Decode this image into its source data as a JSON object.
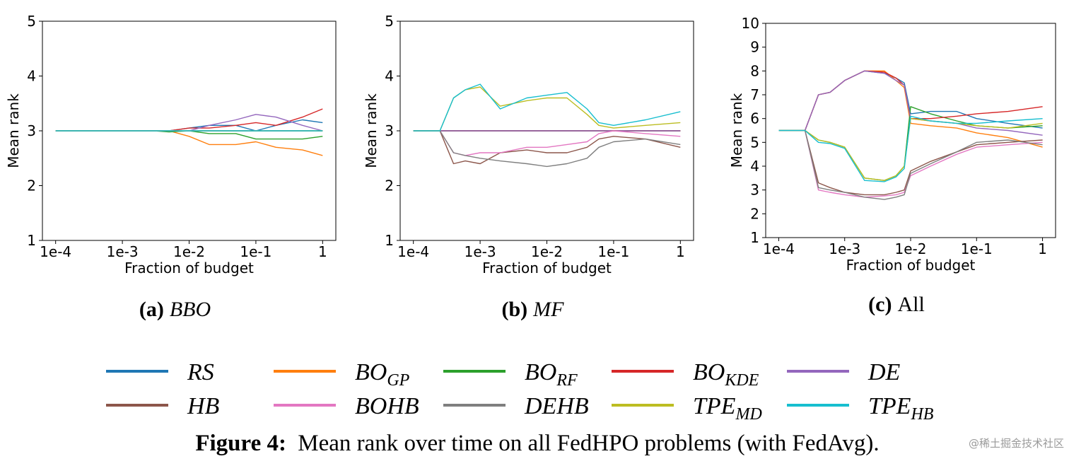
{
  "figure": {
    "caption_label": "Figure 4:",
    "caption_text": "Mean rank over time on all FedHPO problems (with FedAvg).",
    "watermark": "@稀土掘金技术社区"
  },
  "legend": [
    {
      "main": "RS",
      "sub": "",
      "color": "#1f77b4"
    },
    {
      "main": "BO",
      "sub": "GP",
      "color": "#ff7f0e"
    },
    {
      "main": "BO",
      "sub": "RF",
      "color": "#2ca02c"
    },
    {
      "main": "BO",
      "sub": "KDE",
      "color": "#d62728"
    },
    {
      "main": "DE",
      "sub": "",
      "color": "#9467bd"
    },
    {
      "main": "HB",
      "sub": "",
      "color": "#8c564b"
    },
    {
      "main": "BOHB",
      "sub": "",
      "color": "#e377c2"
    },
    {
      "main": "DEHB",
      "sub": "",
      "color": "#7f7f7f"
    },
    {
      "main": "TPE",
      "sub": "MD",
      "color": "#bcbd22"
    },
    {
      "main": "TPE",
      "sub": "HB",
      "color": "#17becf"
    }
  ],
  "chart_data": [
    {
      "type": "line",
      "panel": "a",
      "caption_label": "(a)",
      "caption_name": "BBO",
      "xlabel": "Fraction of budget",
      "ylabel": "Mean rank",
      "xscale": "log",
      "xlim": [
        0.0001,
        1
      ],
      "ylim": [
        1,
        5
      ],
      "xticks": [
        "1e-4",
        "1e-3",
        "1e-2",
        "1e-1",
        "1"
      ],
      "yticks": [
        "1",
        "2",
        "3",
        "4",
        "5"
      ],
      "x": [
        0.0001,
        0.003,
        0.005,
        0.01,
        0.02,
        0.05,
        0.1,
        0.2,
        0.5,
        1
      ],
      "series": [
        {
          "name": "RS",
          "values": [
            3.0,
            3.0,
            3.0,
            3.05,
            3.1,
            3.1,
            3.0,
            3.1,
            3.2,
            3.15
          ]
        },
        {
          "name": "BO_GP",
          "values": [
            3.0,
            3.0,
            3.0,
            2.9,
            2.75,
            2.75,
            2.8,
            2.7,
            2.65,
            2.55
          ]
        },
        {
          "name": "BO_RF",
          "values": [
            3.0,
            3.0,
            2.98,
            3.0,
            2.95,
            2.95,
            2.85,
            2.85,
            2.85,
            2.9
          ]
        },
        {
          "name": "BO_KDE",
          "values": [
            3.0,
            3.0,
            3.0,
            3.05,
            3.05,
            3.1,
            3.15,
            3.1,
            3.25,
            3.4
          ]
        },
        {
          "name": "DE",
          "values": [
            3.0,
            3.0,
            3.0,
            3.0,
            3.1,
            3.2,
            3.3,
            3.25,
            3.1,
            3.0
          ]
        },
        {
          "name": "HB",
          "values": [
            3.0,
            3.0,
            3.0,
            3.0,
            3.0,
            3.0,
            3.0,
            3.0,
            3.0,
            3.0
          ]
        },
        {
          "name": "BOHB",
          "values": [
            3.0,
            3.0,
            3.0,
            3.0,
            3.0,
            3.0,
            3.0,
            3.0,
            3.0,
            3.0
          ]
        },
        {
          "name": "DEHB",
          "values": [
            3.0,
            3.0,
            3.0,
            3.0,
            3.0,
            3.0,
            3.0,
            3.0,
            3.0,
            3.0
          ]
        },
        {
          "name": "TPE_MD",
          "values": [
            3.0,
            3.0,
            3.0,
            3.0,
            3.0,
            3.0,
            3.0,
            3.0,
            3.0,
            3.0
          ]
        },
        {
          "name": "TPE_HB",
          "values": [
            3.0,
            3.0,
            3.0,
            3.0,
            3.0,
            3.0,
            3.0,
            3.0,
            3.0,
            3.0
          ]
        }
      ]
    },
    {
      "type": "line",
      "panel": "b",
      "caption_label": "(b)",
      "caption_name": "MF",
      "xlabel": "Fraction of budget",
      "ylabel": "Mean rank",
      "xscale": "log",
      "xlim": [
        0.0001,
        1
      ],
      "ylim": [
        1,
        5
      ],
      "xticks": [
        "1e-4",
        "1e-3",
        "1e-2",
        "1e-1",
        "1"
      ],
      "yticks": [
        "1",
        "2",
        "3",
        "4",
        "5"
      ],
      "x": [
        0.0001,
        0.00025,
        0.0004,
        0.0006,
        0.001,
        0.002,
        0.005,
        0.01,
        0.02,
        0.04,
        0.06,
        0.1,
        0.3,
        1
      ],
      "series": [
        {
          "name": "RS",
          "values": [
            3.0,
            3.0,
            3.0,
            3.0,
            3.0,
            3.0,
            3.0,
            3.0,
            3.0,
            3.0,
            3.0,
            3.0,
            3.0,
            3.0
          ]
        },
        {
          "name": "BO_GP",
          "values": [
            3.0,
            3.0,
            3.0,
            3.0,
            3.0,
            3.0,
            3.0,
            3.0,
            3.0,
            3.0,
            3.0,
            3.0,
            3.0,
            3.0
          ]
        },
        {
          "name": "BO_RF",
          "values": [
            3.0,
            3.0,
            3.0,
            3.0,
            3.0,
            3.0,
            3.0,
            3.0,
            3.0,
            3.0,
            3.0,
            3.0,
            3.0,
            3.0
          ]
        },
        {
          "name": "BO_KDE",
          "values": [
            3.0,
            3.0,
            3.0,
            3.0,
            3.0,
            3.0,
            3.0,
            3.0,
            3.0,
            3.0,
            3.0,
            3.0,
            3.0,
            3.0
          ]
        },
        {
          "name": "DE",
          "values": [
            3.0,
            3.0,
            3.0,
            3.0,
            3.0,
            3.0,
            3.0,
            3.0,
            3.0,
            3.0,
            3.0,
            3.0,
            3.0,
            3.0
          ]
        },
        {
          "name": "HB",
          "values": [
            3.0,
            3.0,
            2.4,
            2.45,
            2.4,
            2.6,
            2.65,
            2.6,
            2.6,
            2.7,
            2.85,
            2.9,
            2.85,
            2.7
          ]
        },
        {
          "name": "BOHB",
          "values": [
            3.0,
            3.0,
            2.6,
            2.55,
            2.6,
            2.6,
            2.7,
            2.7,
            2.75,
            2.8,
            2.95,
            3.0,
            2.95,
            2.9
          ]
        },
        {
          "name": "DEHB",
          "values": [
            3.0,
            3.0,
            2.6,
            2.55,
            2.5,
            2.45,
            2.4,
            2.35,
            2.4,
            2.5,
            2.7,
            2.8,
            2.85,
            2.75
          ]
        },
        {
          "name": "TPE_MD",
          "values": [
            3.0,
            3.0,
            3.6,
            3.75,
            3.8,
            3.45,
            3.55,
            3.6,
            3.6,
            3.3,
            3.1,
            3.05,
            3.1,
            3.15
          ]
        },
        {
          "name": "TPE_HB",
          "values": [
            3.0,
            3.0,
            3.6,
            3.75,
            3.85,
            3.4,
            3.6,
            3.65,
            3.7,
            3.4,
            3.15,
            3.1,
            3.2,
            3.35
          ]
        }
      ]
    },
    {
      "type": "line",
      "panel": "c",
      "caption_label": "(c)",
      "caption_name": "All",
      "xlabel": "Fraction of budget",
      "ylabel": "Mean rank",
      "xscale": "log",
      "xlim": [
        0.0001,
        1
      ],
      "ylim": [
        1,
        10
      ],
      "xticks": [
        "1e-4",
        "1e-3",
        "1e-2",
        "1e-1",
        "1"
      ],
      "yticks": [
        "1",
        "2",
        "3",
        "4",
        "5",
        "6",
        "7",
        "8",
        "9",
        "10"
      ],
      "x": [
        0.0001,
        0.00025,
        0.0004,
        0.0006,
        0.001,
        0.002,
        0.004,
        0.006,
        0.008,
        0.01,
        0.02,
        0.05,
        0.1,
        0.3,
        1
      ],
      "series": [
        {
          "name": "RS",
          "values": [
            5.5,
            5.5,
            7.0,
            7.1,
            7.6,
            8.0,
            7.9,
            7.7,
            7.5,
            6.2,
            6.3,
            6.3,
            6.0,
            5.8,
            5.6
          ]
        },
        {
          "name": "BO_GP",
          "values": [
            5.5,
            5.5,
            7.0,
            7.1,
            7.6,
            8.0,
            8.0,
            7.6,
            7.3,
            5.8,
            5.7,
            5.6,
            5.4,
            5.2,
            4.8
          ]
        },
        {
          "name": "BO_RF",
          "values": [
            5.5,
            5.5,
            5.1,
            5.0,
            4.8,
            3.5,
            3.4,
            3.6,
            4.0,
            6.5,
            6.2,
            5.9,
            5.7,
            5.6,
            5.7
          ]
        },
        {
          "name": "BO_KDE",
          "values": [
            5.5,
            5.5,
            7.0,
            7.1,
            7.6,
            8.0,
            7.95,
            7.7,
            7.4,
            6.0,
            6.0,
            6.1,
            6.2,
            6.3,
            6.5
          ]
        },
        {
          "name": "DE",
          "values": [
            5.5,
            5.5,
            7.0,
            7.1,
            7.6,
            8.0,
            7.9,
            7.6,
            7.4,
            6.0,
            5.9,
            5.8,
            5.6,
            5.5,
            5.3
          ]
        },
        {
          "name": "HB",
          "values": [
            5.5,
            5.5,
            3.3,
            3.1,
            2.9,
            2.8,
            2.8,
            2.9,
            3.0,
            3.8,
            4.2,
            4.6,
            4.9,
            5.0,
            5.1
          ]
        },
        {
          "name": "BOHB",
          "values": [
            5.5,
            5.5,
            3.0,
            2.9,
            2.8,
            2.7,
            2.75,
            2.8,
            2.9,
            3.6,
            4.0,
            4.5,
            4.8,
            4.9,
            5.0
          ]
        },
        {
          "name": "DEHB",
          "values": [
            5.5,
            5.5,
            3.1,
            3.0,
            2.9,
            2.7,
            2.6,
            2.7,
            2.8,
            3.7,
            4.1,
            4.6,
            5.0,
            5.1,
            4.9
          ]
        },
        {
          "name": "TPE_MD",
          "values": [
            5.5,
            5.5,
            5.1,
            5.0,
            4.8,
            3.5,
            3.4,
            3.6,
            4.0,
            6.0,
            5.9,
            5.8,
            5.7,
            5.6,
            5.8
          ]
        },
        {
          "name": "TPE_HB",
          "values": [
            5.5,
            5.5,
            5.0,
            4.95,
            4.75,
            3.4,
            3.35,
            3.55,
            3.9,
            6.1,
            5.9,
            5.8,
            5.8,
            5.9,
            6.0
          ]
        }
      ]
    }
  ]
}
